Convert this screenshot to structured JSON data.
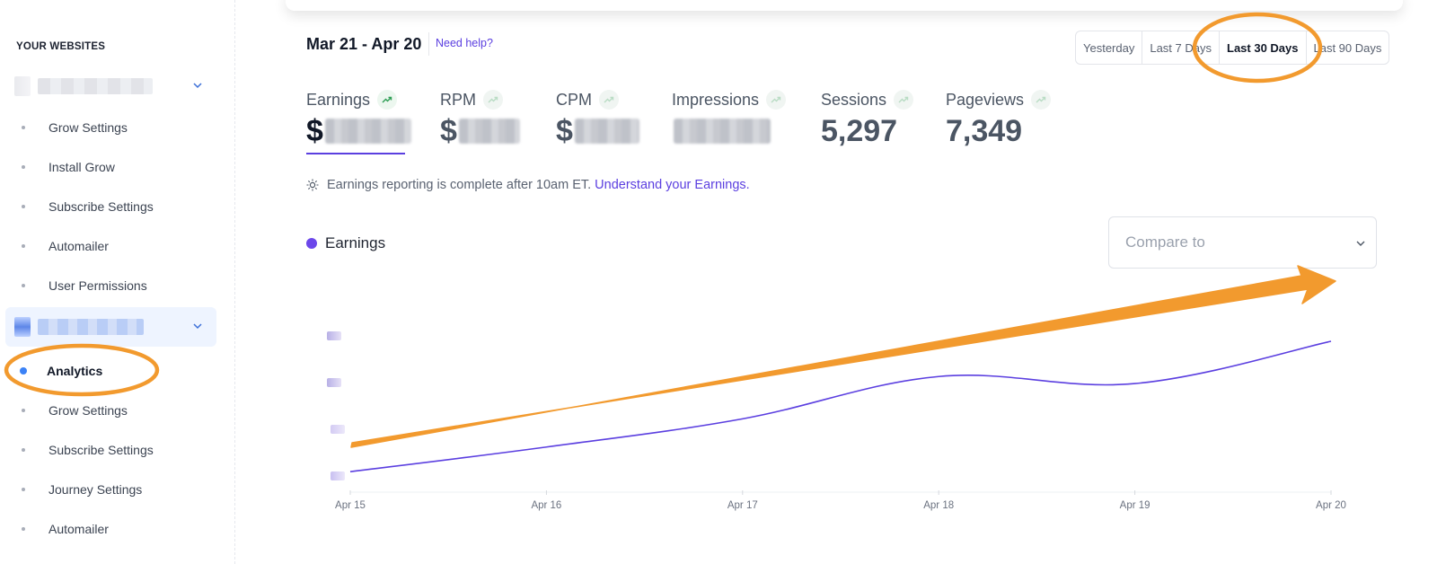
{
  "sidebar": {
    "heading": "YOUR WEBSITES",
    "site1": {
      "items": [
        "Grow Settings",
        "Install Grow",
        "Subscribe Settings",
        "Automailer",
        "User Permissions"
      ]
    },
    "site2": {
      "items": [
        "Analytics",
        "Grow Settings",
        "Subscribe Settings",
        "Journey Settings",
        "Automailer"
      ],
      "active_index": 0
    }
  },
  "header": {
    "date_range": "Mar 21 - Apr 20",
    "help_link": "Need help?",
    "ranges": [
      "Yesterday",
      "Last 7 Days",
      "Last 30 Days",
      "Last 90 Days"
    ],
    "active_range": "Last 30 Days"
  },
  "metrics": [
    {
      "label": "Earnings",
      "value": "$",
      "trend": "up"
    },
    {
      "label": "RPM",
      "value": "$",
      "trend": "up"
    },
    {
      "label": "CPM",
      "value": "$",
      "trend": "up"
    },
    {
      "label": "Impressions",
      "value": "",
      "trend": "up"
    },
    {
      "label": "Sessions",
      "value": "5,297",
      "trend": "up"
    },
    {
      "label": "Pageviews",
      "value": "7,349",
      "trend": "up"
    }
  ],
  "notice": {
    "text": "Earnings reporting is complete after 10am ET.",
    "link": "Understand your Earnings."
  },
  "legend": {
    "label": "Earnings",
    "color": "#6c47ea"
  },
  "compare": {
    "placeholder": "Compare to"
  },
  "colors": {
    "accent": "#5b3fe0",
    "annotation": "#f29a2e",
    "active_nav": "#3b82f6"
  },
  "chart_data": {
    "type": "line",
    "x": [
      "Apr 15",
      "Apr 16",
      "Apr 17",
      "Apr 18",
      "Apr 19",
      "Apr 20"
    ],
    "series": [
      {
        "name": "Earnings",
        "values": [
          0.3,
          1.0,
          1.8,
          3.0,
          2.8,
          4.0
        ]
      }
    ],
    "y_labels_obscured": true
  }
}
